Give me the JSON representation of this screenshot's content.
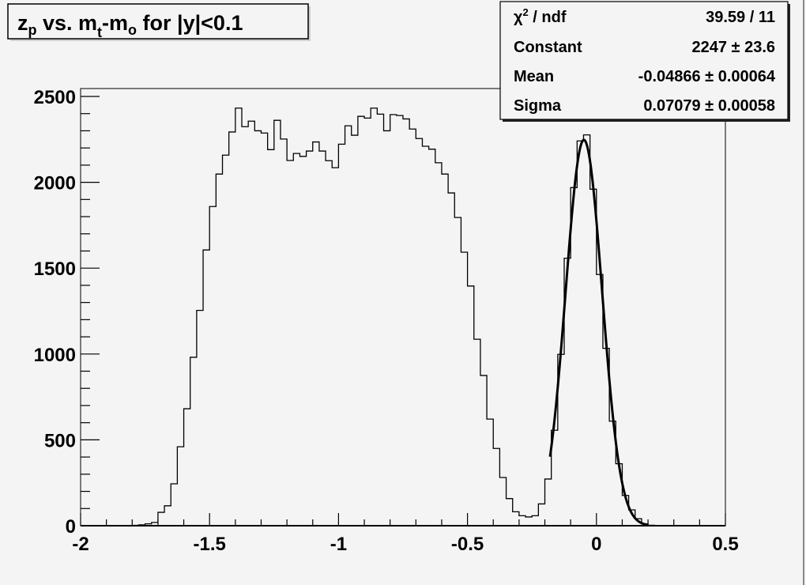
{
  "title": {
    "parts": [
      "z",
      "p",
      " vs. m",
      "t",
      "-m",
      "o",
      " for |y|<0.1"
    ]
  },
  "stats": {
    "rows": [
      {
        "label_main": "χ",
        "label_sup": "2",
        "label_rest": " / ndf",
        "value": "39.59 / 11"
      },
      {
        "label": "Constant",
        "value": "2247 ± 23.6"
      },
      {
        "label": "Mean",
        "value": "-0.04866 ± 0.00064"
      },
      {
        "label": "Sigma",
        "value": "0.07079 ± 0.00058"
      }
    ]
  },
  "chart_data": {
    "type": "bar",
    "histogram": true,
    "title": "z_p vs. m_t-m_o for |y|<0.1",
    "xlim": [
      -2,
      0.5
    ],
    "ylim": [
      0,
      2500
    ],
    "bin_width": 0.025,
    "xticks": [
      "-2",
      "-1.5",
      "-1",
      "-0.5",
      "0",
      "0.5"
    ],
    "yticks": [
      "0",
      "500",
      "1000",
      "1500",
      "2000",
      "2500"
    ],
    "grid": false,
    "values": [
      0,
      0,
      0,
      0,
      0,
      0,
      0,
      0,
      2,
      5,
      11,
      19,
      78,
      116,
      244,
      460,
      681,
      981,
      1254,
      1606,
      1859,
      2048,
      2158,
      2293,
      2432,
      2324,
      2356,
      2300,
      2287,
      2190,
      2361,
      2252,
      2127,
      2168,
      2151,
      2182,
      2235,
      2182,
      2126,
      2085,
      2222,
      2329,
      2274,
      2384,
      2374,
      2432,
      2397,
      2300,
      2394,
      2389,
      2369,
      2310,
      2255,
      2210,
      2193,
      2114,
      2048,
      1938,
      1795,
      1593,
      1396,
      1086,
      875,
      621,
      450,
      281,
      158,
      81,
      58,
      51,
      58,
      127,
      272,
      556,
      998,
      1558,
      1969,
      2241,
      2276,
      1960,
      1463,
      1033,
      609,
      361,
      176,
      92,
      41,
      11,
      3,
      0,
      0,
      0,
      0,
      0,
      0,
      0,
      0,
      0,
      0,
      0
    ],
    "fit": {
      "function": "gaus",
      "constant": 2247,
      "mean": -0.04866,
      "sigma": 0.07079,
      "range": [
        -0.18,
        0.2
      ]
    },
    "colors": {
      "line": "#000000",
      "background": "#f4f4f4"
    }
  }
}
